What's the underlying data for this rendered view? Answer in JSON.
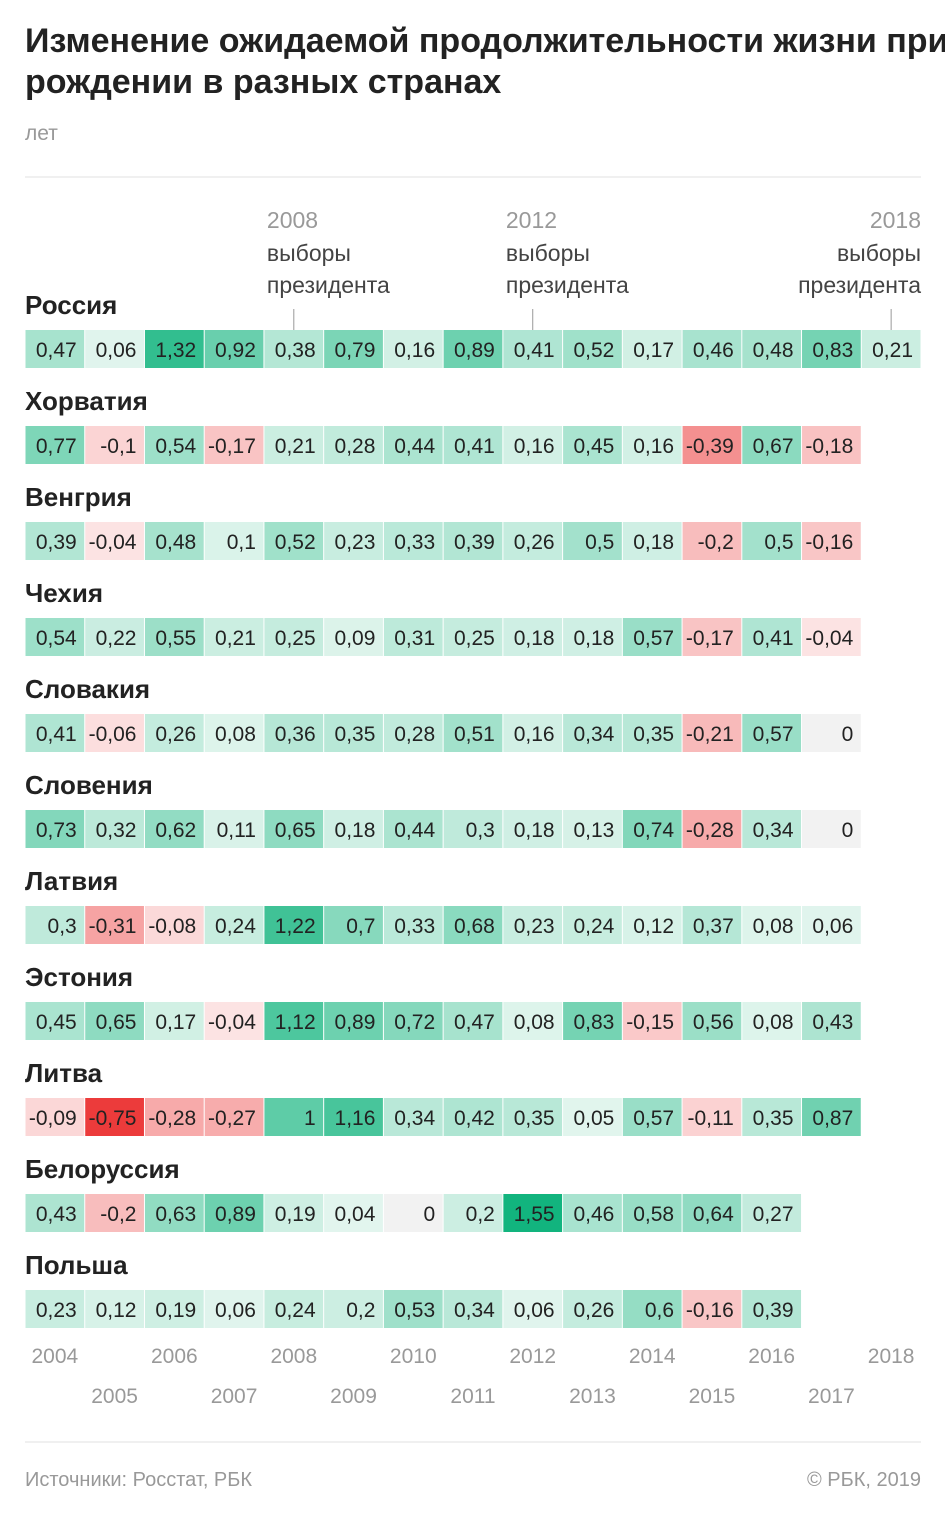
{
  "chart_data": {
    "type": "heatmap",
    "title": "Изменение ожидаемой продолжительности жизни при рождении в разных странах",
    "subtitle": "лет",
    "categories": [
      "2004",
      "2005",
      "2006",
      "2007",
      "2008",
      "2009",
      "2010",
      "2011",
      "2012",
      "2013",
      "2014",
      "2015",
      "2016",
      "2017",
      "2018"
    ],
    "colors": {
      "positive": "#12b47e",
      "negative": "#ec3b3b",
      "zero": "#f2f2f2"
    },
    "annotations": [
      {
        "label": "2008",
        "lines": [
          "выборы",
          "президента"
        ]
      },
      {
        "label": "2012",
        "lines": [
          "выборы",
          "президента"
        ]
      },
      {
        "label": "2018",
        "lines": [
          "выборы",
          "президента"
        ]
      }
    ],
    "series": [
      {
        "name": "Россия",
        "values": [
          0.47,
          0.06,
          1.32,
          0.92,
          0.38,
          0.79,
          0.16,
          0.89,
          0.41,
          0.52,
          0.17,
          0.46,
          0.48,
          0.83,
          0.21
        ],
        "value_labels": [
          "0,47",
          "0,06",
          "1,32",
          "0,92",
          "0,38",
          "0,79",
          "0,16",
          "0,89",
          "0,41",
          "0,52",
          "0,17",
          "0,46",
          "0,48",
          "0,83",
          "0,21"
        ]
      },
      {
        "name": "Хорватия",
        "values": [
          0.77,
          -0.1,
          0.54,
          -0.17,
          0.21,
          0.28,
          0.44,
          0.41,
          0.16,
          0.45,
          0.16,
          -0.39,
          0.67,
          -0.18,
          null
        ],
        "value_labels": [
          "0,77",
          "-0,1",
          "0,54",
          "-0,17",
          "0,21",
          "0,28",
          "0,44",
          "0,41",
          "0,16",
          "0,45",
          "0,16",
          "-0,39",
          "0,67",
          "-0,18",
          null
        ]
      },
      {
        "name": "Венгрия",
        "values": [
          0.39,
          -0.04,
          0.48,
          0.1,
          0.52,
          0.23,
          0.33,
          0.39,
          0.26,
          0.5,
          0.18,
          -0.2,
          0.5,
          -0.16,
          null
        ],
        "value_labels": [
          "0,39",
          "-0,04",
          "0,48",
          "0,1",
          "0,52",
          "0,23",
          "0,33",
          "0,39",
          "0,26",
          "0,5",
          "0,18",
          "-0,2",
          "0,5",
          "-0,16",
          null
        ]
      },
      {
        "name": "Чехия",
        "values": [
          0.54,
          0.22,
          0.55,
          0.21,
          0.25,
          0.09,
          0.31,
          0.25,
          0.18,
          0.18,
          0.57,
          -0.17,
          0.41,
          -0.04,
          null
        ],
        "value_labels": [
          "0,54",
          "0,22",
          "0,55",
          "0,21",
          "0,25",
          "0,09",
          "0,31",
          "0,25",
          "0,18",
          "0,18",
          "0,57",
          "-0,17",
          "0,41",
          "-0,04",
          null
        ]
      },
      {
        "name": "Словакия",
        "values": [
          0.41,
          -0.06,
          0.26,
          0.08,
          0.36,
          0.35,
          0.28,
          0.51,
          0.16,
          0.34,
          0.35,
          -0.21,
          0.57,
          0,
          null
        ],
        "value_labels": [
          "0,41",
          "-0,06",
          "0,26",
          "0,08",
          "0,36",
          "0,35",
          "0,28",
          "0,51",
          "0,16",
          "0,34",
          "0,35",
          "-0,21",
          "0,57",
          "0",
          null
        ]
      },
      {
        "name": "Словения",
        "values": [
          0.73,
          0.32,
          0.62,
          0.11,
          0.65,
          0.18,
          0.44,
          0.3,
          0.18,
          0.13,
          0.74,
          -0.28,
          0.34,
          0,
          null
        ],
        "value_labels": [
          "0,73",
          "0,32",
          "0,62",
          "0,11",
          "0,65",
          "0,18",
          "0,44",
          "0,3",
          "0,18",
          "0,13",
          "0,74",
          "-0,28",
          "0,34",
          "0",
          null
        ]
      },
      {
        "name": "Латвия",
        "values": [
          0.3,
          -0.31,
          -0.08,
          0.24,
          1.22,
          0.7,
          0.33,
          0.68,
          0.23,
          0.24,
          0.12,
          0.37,
          0.08,
          0.06,
          null
        ],
        "value_labels": [
          "0,3",
          "-0,31",
          "-0,08",
          "0,24",
          "1,22",
          "0,7",
          "0,33",
          "0,68",
          "0,23",
          "0,24",
          "0,12",
          "0,37",
          "0,08",
          "0,06",
          null
        ]
      },
      {
        "name": "Эстония",
        "values": [
          0.45,
          0.65,
          0.17,
          -0.04,
          1.12,
          0.89,
          0.72,
          0.47,
          0.08,
          0.83,
          -0.15,
          0.56,
          0.08,
          0.43,
          null
        ],
        "value_labels": [
          "0,45",
          "0,65",
          "0,17",
          "-0,04",
          "1,12",
          "0,89",
          "0,72",
          "0,47",
          "0,08",
          "0,83",
          "-0,15",
          "0,56",
          "0,08",
          "0,43",
          null
        ]
      },
      {
        "name": "Литва",
        "values": [
          -0.09,
          -0.75,
          -0.28,
          -0.27,
          1,
          1.16,
          0.34,
          0.42,
          0.35,
          0.05,
          0.57,
          -0.11,
          0.35,
          0.87,
          null
        ],
        "value_labels": [
          "-0,09",
          "-0,75",
          "-0,28",
          "-0,27",
          "1",
          "1,16",
          "0,34",
          "0,42",
          "0,35",
          "0,05",
          "0,57",
          "-0,11",
          "0,35",
          "0,87",
          null
        ]
      },
      {
        "name": "Белоруссия",
        "values": [
          0.43,
          -0.2,
          0.63,
          0.89,
          0.19,
          0.04,
          0,
          0.2,
          1.55,
          0.46,
          0.58,
          0.64,
          0.27,
          null,
          null
        ],
        "value_labels": [
          "0,43",
          "-0,2",
          "0,63",
          "0,89",
          "0,19",
          "0,04",
          "0",
          "0,2",
          "1,55",
          "0,46",
          "0,58",
          "0,64",
          "0,27",
          null,
          null
        ]
      },
      {
        "name": "Польша",
        "values": [
          0.23,
          0.12,
          0.19,
          0.06,
          0.24,
          0.2,
          0.53,
          0.34,
          0.06,
          0.26,
          0.6,
          -0.16,
          0.39,
          null,
          null
        ],
        "value_labels": [
          "0,23",
          "0,12",
          "0,19",
          "0,06",
          "0,24",
          "0,2",
          "0,53",
          "0,34",
          "0,06",
          "0,26",
          "0,6",
          "-0,16",
          "0,39",
          null,
          null
        ]
      }
    ],
    "source": "Источники: Росстат, РБК",
    "credit": "© РБК, 2019"
  }
}
